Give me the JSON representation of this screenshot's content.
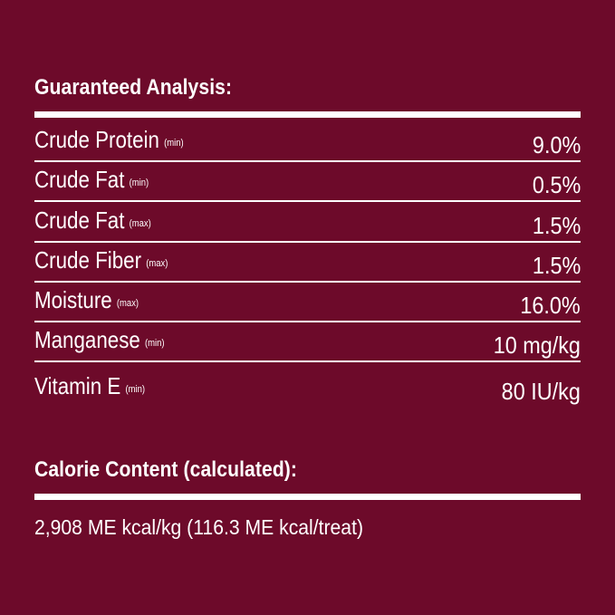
{
  "guaranteed_analysis": {
    "heading": "Guaranteed Analysis:",
    "rows": [
      {
        "name": "Crude Protein",
        "qualifier": "(min)",
        "value": "9.0%"
      },
      {
        "name": "Crude Fat",
        "qualifier": "(min)",
        "value": "0.5%"
      },
      {
        "name": "Crude Fat",
        "qualifier": "(max)",
        "value": "1.5%"
      },
      {
        "name": "Crude Fiber",
        "qualifier": "(max)",
        "value": "1.5%"
      },
      {
        "name": "Moisture",
        "qualifier": "(max)",
        "value": "16.0%"
      },
      {
        "name": "Manganese",
        "qualifier": "(min)",
        "value": "10 mg/kg"
      },
      {
        "name": "Vitamin E",
        "qualifier": "(min)",
        "value": "80 IU/kg"
      }
    ]
  },
  "calorie_content": {
    "heading": "Calorie Content (calculated):",
    "text": "2,908 ME kcal/kg (116.3 ME kcal/treat)"
  },
  "colors": {
    "background": "#6d0a2a",
    "foreground": "#ffffff"
  }
}
